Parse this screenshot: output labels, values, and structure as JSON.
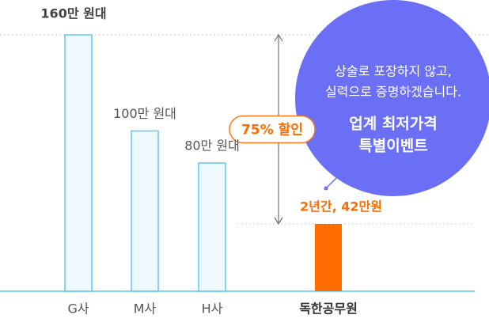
{
  "chart_data": {
    "type": "bar",
    "categories": [
      "G사",
      "M사",
      "H사",
      "독한공무원"
    ],
    "values": [
      160,
      100,
      80,
      42
    ],
    "value_labels": [
      "160만 원대",
      "100만 원대",
      "80만 원대",
      "2년간, 42만원"
    ],
    "colors": [
      "#eef9fe",
      "#eef9fe",
      "#eef9fe",
      "#ff6c00"
    ],
    "ylim": [
      0,
      160
    ],
    "discount": "75% 할인",
    "bubble": {
      "lines": [
        "상술로 포장하지 않고,",
        "실력으로 증명하겠습니다."
      ],
      "highlight": [
        "업계 최저가격",
        "특별이벤트"
      ]
    }
  }
}
